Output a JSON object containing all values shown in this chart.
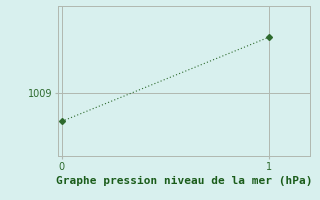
{
  "x": [
    0,
    1
  ],
  "y": [
    1006.5,
    1013.8
  ],
  "line_color": "#2d6a2d",
  "marker": "D",
  "marker_size": 3,
  "background_color": "#d8f0ee",
  "grid_color": "#b0b8b0",
  "yticks": [
    1009
  ],
  "xticks": [
    0,
    1
  ],
  "xlabel": "Graphe pression niveau de la mer (hPa)",
  "xlabel_color": "#1a5c1a",
  "xlabel_fontsize": 8,
  "tick_color": "#2d6a2d",
  "tick_fontsize": 7,
  "ylim": [
    1003.5,
    1016.5
  ],
  "xlim": [
    -0.02,
    1.2
  ]
}
